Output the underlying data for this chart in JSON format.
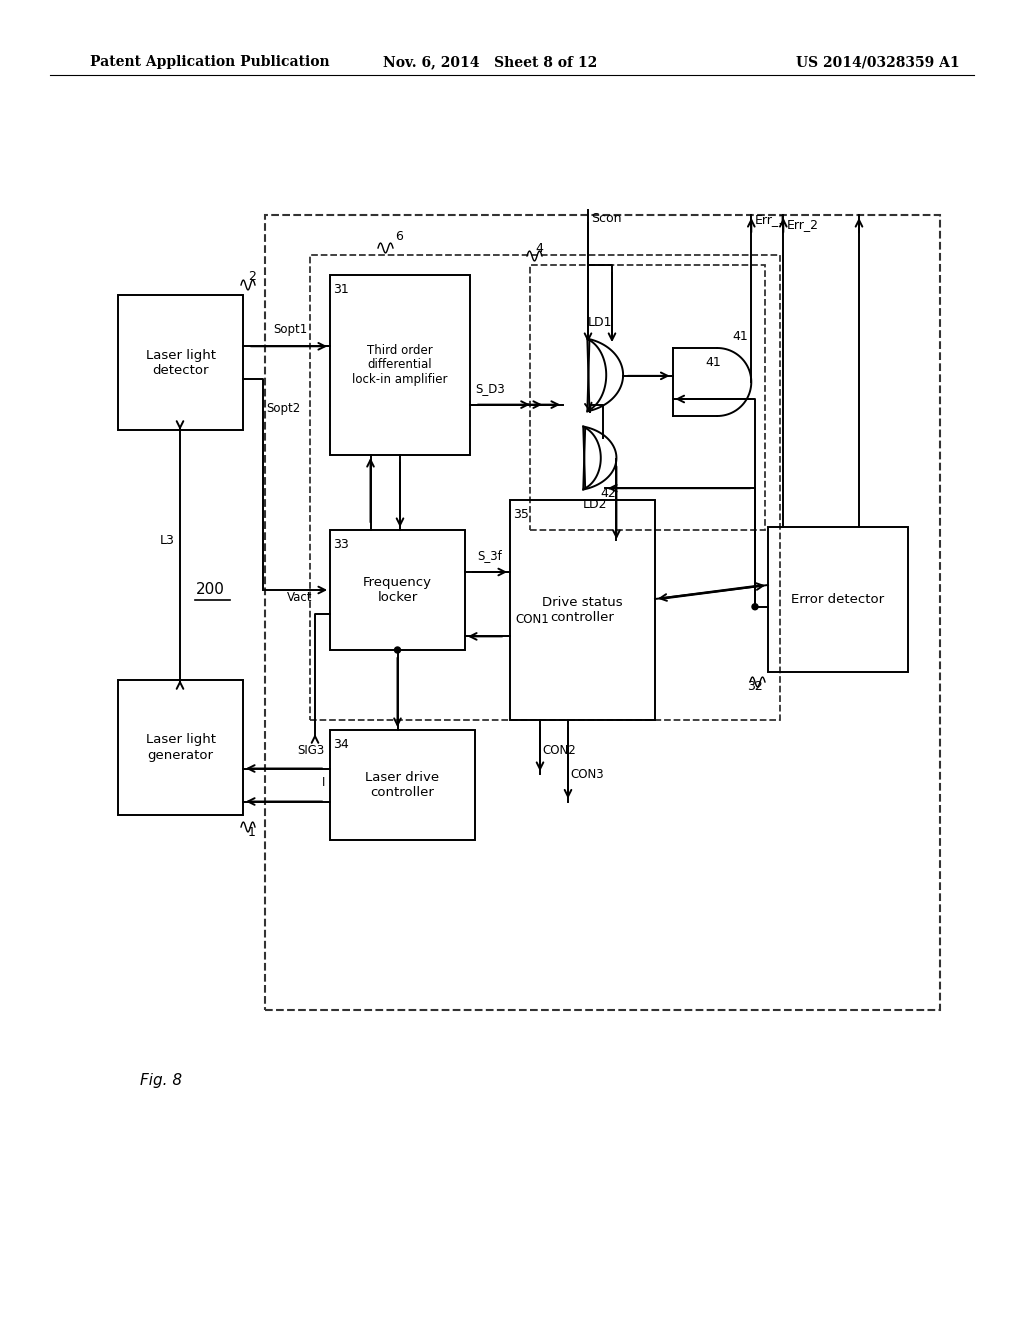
{
  "title_left": "Patent Application Publication",
  "title_mid": "Nov. 6, 2014   Sheet 8 of 12",
  "title_right": "US 2014/0328359 A1",
  "fig_label": "Fig. 8",
  "background": "#ffffff"
}
